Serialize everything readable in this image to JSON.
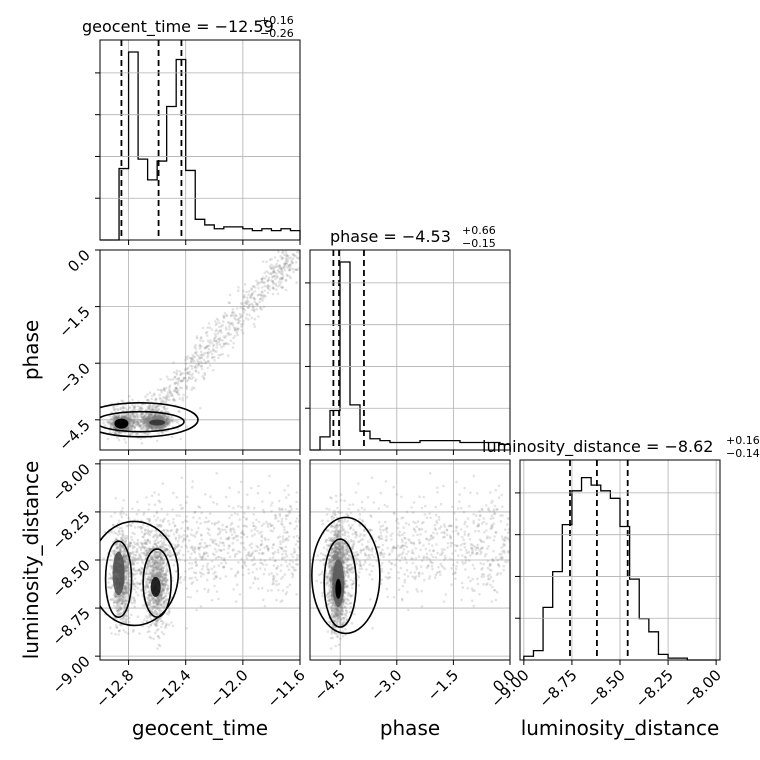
{
  "chart_data": {
    "type": "corner",
    "parameters": [
      "geocent_time",
      "phase",
      "luminosity_distance"
    ],
    "axis_labels": [
      "geocent_time",
      "phase",
      "luminosity_distance"
    ],
    "ranges": {
      "geocent_time": [
        -13.0,
        -11.6
      ],
      "phase": [
        -5.3,
        0.0
      ],
      "luminosity_distance": [
        -9.02,
        -7.98
      ]
    },
    "ticks": {
      "geocent_time": [
        -12.8,
        -12.4,
        -12.0,
        -11.6
      ],
      "phase": [
        0.0,
        -1.5,
        -3.0,
        -4.5
      ],
      "phase_x": [
        -4.5,
        -3.0,
        -1.5,
        0.0
      ],
      "luminosity_distance": [
        -8.0,
        -8.25,
        -8.5,
        -8.75,
        -9.0
      ],
      "luminosity_distance_x": [
        -9.0,
        -8.75,
        -8.5,
        -8.25,
        -8.0
      ]
    },
    "tick_labels": {
      "geocent_time_x": [
        "−12.8",
        "−12.4",
        "−12.0",
        "−11.6"
      ],
      "phase_y": [
        "0.0",
        "−1.5",
        "−3.0",
        "−4.5"
      ],
      "phase_x": [
        "−4.5",
        "−3.0",
        "−1.5",
        "0.0"
      ],
      "luminosity_distance_y": [
        "−8.00",
        "−8.25",
        "−8.50",
        "−8.75",
        "−9.00"
      ],
      "luminosity_distance_x": [
        "−9.00",
        "−8.75",
        "−8.50",
        "−8.25",
        "−8.00"
      ]
    },
    "titles": {
      "geocent_time": {
        "main": "geocent_time = −12.59",
        "sup": "+0.16",
        "sub": "−0.26"
      },
      "phase": {
        "main": "phase = −4.53",
        "sup": "+0.66",
        "sub": "−0.15"
      },
      "luminosity_distance": {
        "main": "luminosity_distance = −8.62",
        "sup": "+0.16",
        "sub": "−0.14"
      }
    },
    "quantiles": {
      "geocent_time": [
        -12.85,
        -12.59,
        -12.43
      ],
      "phase": [
        -4.68,
        -4.53,
        -3.87
      ],
      "luminosity_distance": [
        -8.76,
        -8.62,
        -8.46
      ]
    },
    "histograms": {
      "geocent_time": {
        "range": [
          -13.0,
          -11.6
        ],
        "counts": [
          0,
          0,
          0.38,
          1.0,
          0.43,
          0.32,
          0.42,
          0.71,
          0.96,
          0.37,
          0.11,
          0.08,
          0.06,
          0.07,
          0.07,
          0.06,
          0.05,
          0.06,
          0.05,
          0.06,
          0.05
        ]
      },
      "phase": {
        "range": [
          -5.3,
          0.0
        ],
        "counts": [
          0,
          0.07,
          0.21,
          1.0,
          0.24,
          0.1,
          0.06,
          0.05,
          0.04,
          0.04,
          0.04,
          0.05,
          0.05,
          0.05,
          0.05,
          0.04,
          0.04,
          0.04,
          0.04,
          0.03
        ]
      },
      "luminosity_distance": {
        "range": [
          -9.0,
          -8.0
        ],
        "counts": [
          0.02,
          0.05,
          0.28,
          0.47,
          0.72,
          0.9,
          0.97,
          0.93,
          0.9,
          0.86,
          0.71,
          0.43,
          0.22,
          0.15,
          0.03,
          0.01,
          0.01,
          0.0,
          0.0,
          0.0
        ]
      }
    },
    "scatter_color": "#7f7f7f",
    "line_color": "#000000",
    "grid": true
  }
}
